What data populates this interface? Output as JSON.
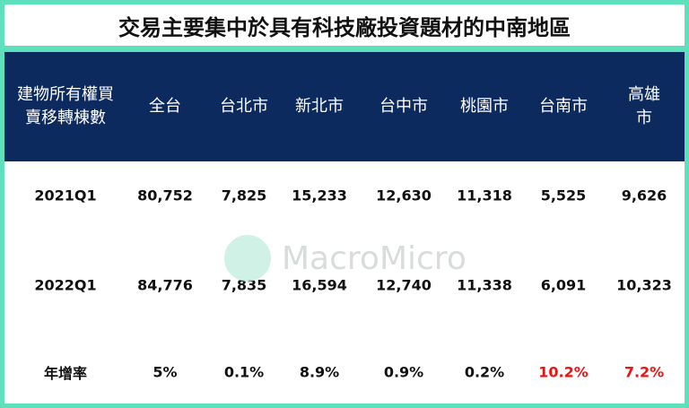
{
  "header": {
    "title": "交易主要集中於具有科技廠投資題材的中南地區"
  },
  "table": {
    "columns": [
      "建物所有權買\n賣移轉棟數",
      "全台",
      "台北市",
      "新北市",
      "台中市",
      "桃園市",
      "台南市",
      "高雄市"
    ],
    "rows": [
      [
        "2021Q1",
        "80,752",
        "7,825",
        "15,233",
        "12,630",
        "11,318",
        "5,525",
        "9,626"
      ],
      [
        "2022Q1",
        "84,776",
        "7,835",
        "16,594",
        "12,740",
        "11,338",
        "6,091",
        "10,323"
      ],
      [
        "年增率",
        "5%",
        "0.1%",
        "8.9%",
        "0.9%",
        "0.2%",
        "10.2%",
        "7.2%"
      ]
    ],
    "highlight": {
      "color": "#ee1111",
      "row": 2,
      "columns": [
        6,
        7
      ]
    }
  },
  "watermark": "MacroMicro"
}
